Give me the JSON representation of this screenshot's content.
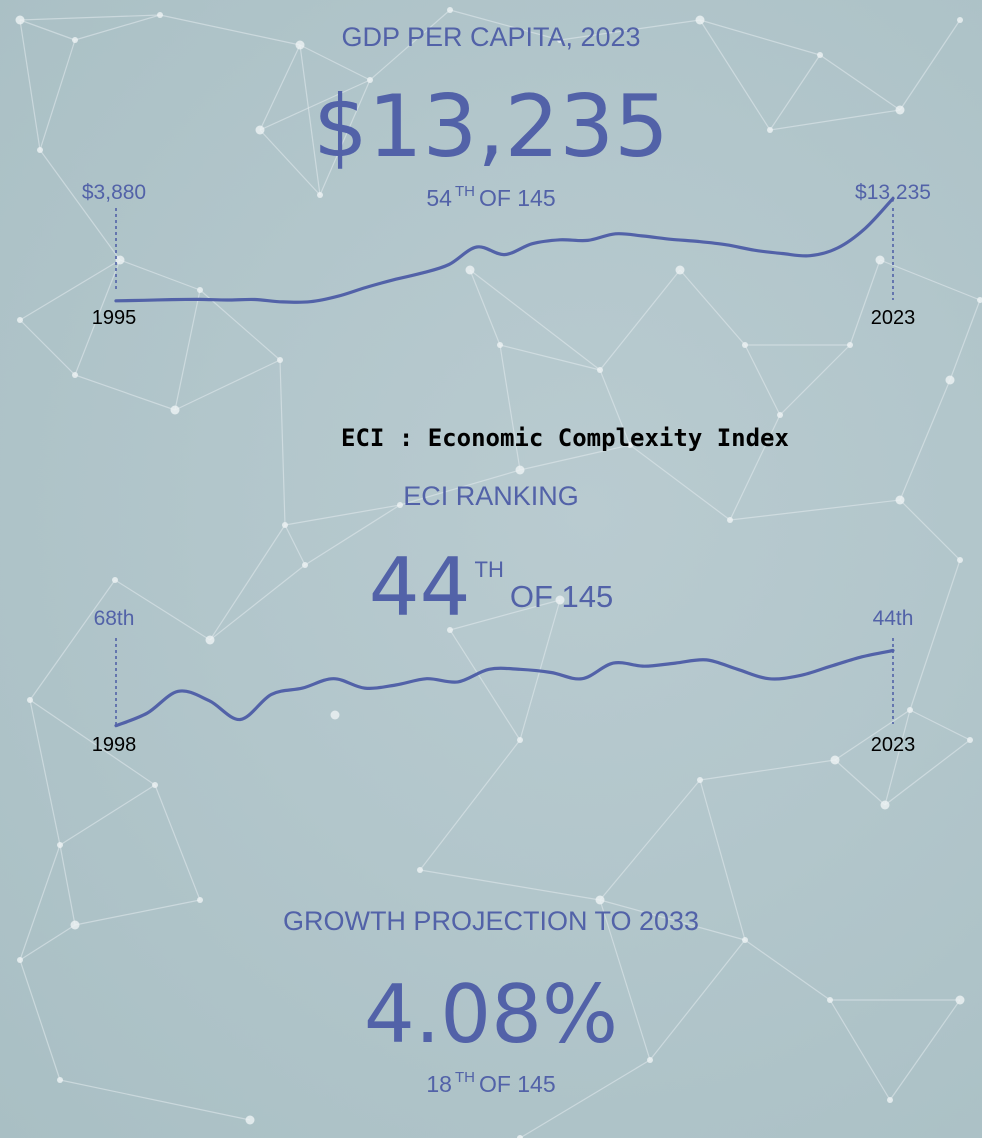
{
  "gdp": {
    "title": "GDP PER CAPITA, 2023",
    "value": "$13,235",
    "rank_num": "54",
    "rank_sup": "TH",
    "rank_of": "OF 145",
    "start_label": "$3,880",
    "end_label": "$13,235",
    "start_year": "1995",
    "end_year": "2023"
  },
  "eci_note": "ECI : Economic Complexity Index",
  "eci": {
    "title": "ECI RANKING",
    "value": "44",
    "value_sup": "TH",
    "value_of": "OF 145",
    "start_label": "68th",
    "end_label": "44th",
    "start_year": "1998",
    "end_year": "2023"
  },
  "growth": {
    "title": "GROWTH PROJECTION TO 2033",
    "value": "4.08%",
    "rank_num": "18",
    "rank_sup": "TH",
    "rank_of": "OF 145"
  },
  "colors": {
    "accent": "#5262a8",
    "background": "#b2c6cb",
    "network_lines": "#dfe7ea"
  },
  "chart_data": [
    {
      "type": "line",
      "title": "GDP PER CAPITA, 2023",
      "x": [
        1995,
        1996,
        1997,
        1998,
        1999,
        2000,
        2001,
        2002,
        2003,
        2004,
        2005,
        2006,
        2007,
        2008,
        2009,
        2010,
        2011,
        2012,
        2013,
        2014,
        2015,
        2016,
        2017,
        2018,
        2019,
        2020,
        2021,
        2022,
        2023
      ],
      "values": [
        3880,
        3930,
        3990,
        4010,
        3960,
        4000,
        3780,
        3800,
        4300,
        5100,
        5800,
        6400,
        7200,
        8800,
        8100,
        9100,
        9450,
        9400,
        10000,
        9800,
        9500,
        9300,
        9000,
        8500,
        8200,
        8000,
        8700,
        10500,
        13235
      ],
      "ylim": [
        3500,
        14000
      ],
      "annotations": [
        "$3,880",
        "$13,235"
      ]
    },
    {
      "type": "line",
      "title": "ECI RANKING",
      "x": [
        1998,
        1999,
        2000,
        2001,
        2002,
        2003,
        2004,
        2005,
        2006,
        2007,
        2008,
        2009,
        2010,
        2011,
        2012,
        2013,
        2014,
        2015,
        2016,
        2017,
        2018,
        2019,
        2020,
        2021,
        2022,
        2023
      ],
      "values": [
        68,
        64,
        57,
        60,
        66,
        58,
        56,
        53,
        56,
        55,
        53,
        54,
        50,
        50,
        51,
        53,
        48,
        49,
        48,
        47,
        50,
        53,
        52,
        49,
        46,
        44
      ],
      "ylim": [
        70,
        40
      ],
      "annotations": [
        "68th",
        "44th"
      ]
    }
  ]
}
